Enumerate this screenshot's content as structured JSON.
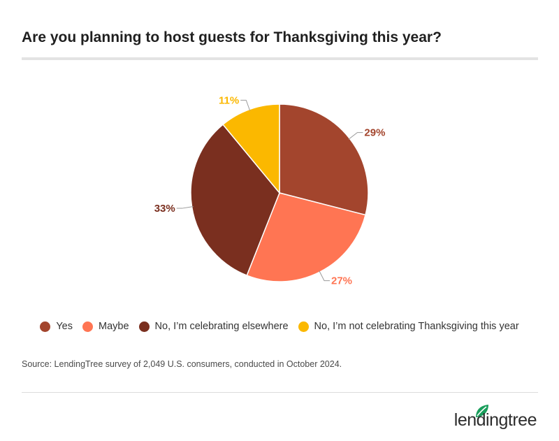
{
  "chart_data": {
    "type": "pie",
    "title": "Are you planning to host guests for Thanksgiving this year?",
    "slices": [
      {
        "label": "Yes",
        "value": 29,
        "value_label": "29%",
        "color": "#A3452D"
      },
      {
        "label": "Maybe",
        "value": 27,
        "value_label": "27%",
        "color": "#FF7553"
      },
      {
        "label": "No, I’m celebrating elsewhere",
        "value": 33,
        "value_label": "33%",
        "color": "#7A2F1F"
      },
      {
        "label": "No, I’m not celebrating Thanksgiving this year",
        "value": 11,
        "value_label": "11%",
        "color": "#FBB800"
      }
    ],
    "legend_position": "bottom",
    "start_angle": "12 o'clock, clockwise"
  },
  "source": "Source: LendingTree survey of 2,049 U.S. consumers, conducted in October 2024.",
  "logo": {
    "text": "lendingtree",
    "leaf_color": "#1A9E5C"
  }
}
